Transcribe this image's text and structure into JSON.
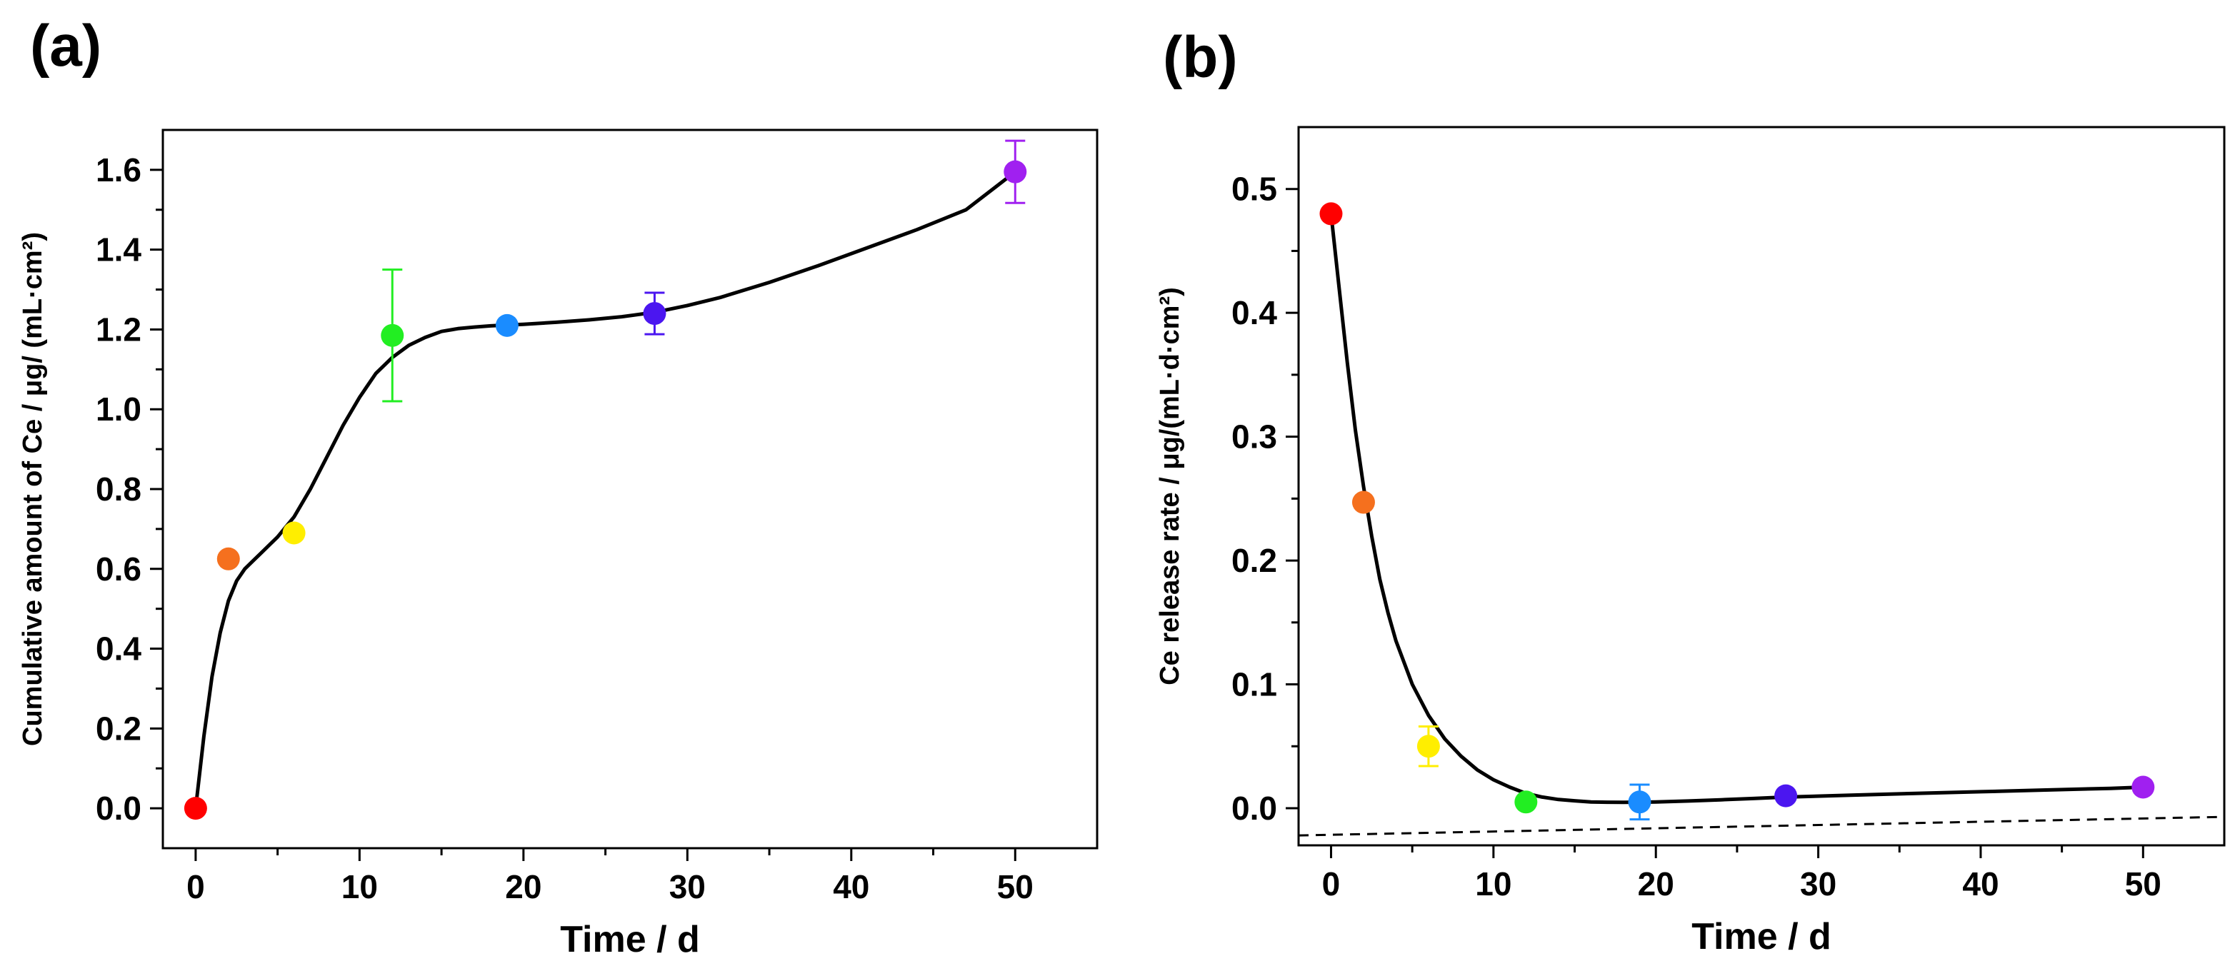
{
  "chart_data": [
    {
      "type": "scatter",
      "panel_label": "(a)",
      "xlabel": "Time / d",
      "ylabel": "Cumulative amount of Ce / μg/ (mL·cm²)",
      "xlim": [
        -2,
        55
      ],
      "ylim": [
        -0.1,
        1.7
      ],
      "xticks": [
        0,
        10,
        20,
        30,
        40,
        50
      ],
      "xtick_labels": [
        "0",
        "10",
        "20",
        "30",
        "40",
        "50"
      ],
      "yticks": [
        0.0,
        0.2,
        0.4,
        0.6,
        0.8,
        1.0,
        1.2,
        1.4,
        1.6
      ],
      "ytick_labels": [
        "0.0",
        "0.2",
        "0.4",
        "0.6",
        "0.8",
        "1.0",
        "1.2",
        "1.4",
        "1.6"
      ],
      "points": [
        {
          "x": 0,
          "y": 0.0,
          "err": 0,
          "color": "#ff0000"
        },
        {
          "x": 2,
          "y": 0.625,
          "err": 0,
          "color": "#f5701e"
        },
        {
          "x": 6,
          "y": 0.69,
          "err": 0,
          "color": "#ffee00"
        },
        {
          "x": 12,
          "y": 1.185,
          "err": 0.165,
          "color": "#22ee22"
        },
        {
          "x": 19,
          "y": 1.21,
          "err": 0,
          "color": "#1a8cff"
        },
        {
          "x": 28,
          "y": 1.24,
          "err": 0.052,
          "color": "#4b16f0"
        },
        {
          "x": 50,
          "y": 1.595,
          "err": 0.078,
          "color": "#a020f0"
        }
      ],
      "fit_curve": {
        "x": [
          0,
          0.5,
          1,
          1.5,
          2,
          2.5,
          3,
          3.5,
          4,
          5,
          6,
          7,
          8,
          9,
          10,
          11,
          12,
          13,
          14,
          15,
          16,
          17,
          18,
          19,
          20,
          22,
          24,
          26,
          28,
          30,
          32,
          35,
          38,
          41,
          44,
          47,
          50
        ],
        "y": [
          0.0,
          0.18,
          0.33,
          0.44,
          0.52,
          0.57,
          0.6,
          0.62,
          0.64,
          0.68,
          0.73,
          0.8,
          0.88,
          0.96,
          1.03,
          1.09,
          1.13,
          1.16,
          1.18,
          1.195,
          1.202,
          1.206,
          1.209,
          1.211,
          1.213,
          1.218,
          1.224,
          1.232,
          1.243,
          1.26,
          1.28,
          1.318,
          1.36,
          1.405,
          1.45,
          1.5,
          1.595
        ]
      }
    },
    {
      "type": "scatter",
      "panel_label": "(b)",
      "xlabel": "Time / d",
      "ylabel": "Ce release rate / μg/(mL·d·cm²)",
      "xlim": [
        -2,
        55
      ],
      "ylim": [
        -0.03,
        0.55
      ],
      "xticks": [
        0,
        10,
        20,
        30,
        40,
        50
      ],
      "xtick_labels": [
        "0",
        "10",
        "20",
        "30",
        "40",
        "50"
      ],
      "yticks": [
        0.0,
        0.1,
        0.2,
        0.3,
        0.4,
        0.5
      ],
      "ytick_labels": [
        "0.0",
        "0.1",
        "0.2",
        "0.3",
        "0.4",
        "0.5"
      ],
      "points": [
        {
          "x": 0,
          "y": 0.48,
          "err": 0,
          "color": "#ff0000"
        },
        {
          "x": 2,
          "y": 0.247,
          "err": 0,
          "color": "#f5701e"
        },
        {
          "x": 6,
          "y": 0.05,
          "err": 0.016,
          "color": "#ffee00"
        },
        {
          "x": 12,
          "y": 0.005,
          "err": 0,
          "color": "#22ee22"
        },
        {
          "x": 19,
          "y": 0.005,
          "err": 0.014,
          "color": "#1a8cff"
        },
        {
          "x": 28,
          "y": 0.01,
          "err": 0,
          "color": "#4b16f0"
        },
        {
          "x": 50,
          "y": 0.017,
          "err": 0,
          "color": "#a020f0"
        }
      ],
      "fit_curve": {
        "x": [
          0,
          0.5,
          1,
          1.5,
          2,
          2.5,
          3,
          3.5,
          4,
          5,
          6,
          7,
          8,
          9,
          10,
          11,
          12,
          13,
          14,
          15,
          16,
          17,
          18,
          19,
          20,
          22,
          24,
          26,
          28,
          32,
          36,
          40,
          44,
          48,
          50
        ],
        "y": [
          0.48,
          0.42,
          0.36,
          0.305,
          0.26,
          0.22,
          0.185,
          0.158,
          0.135,
          0.1,
          0.075,
          0.056,
          0.042,
          0.031,
          0.023,
          0.017,
          0.012,
          0.009,
          0.007,
          0.006,
          0.005,
          0.0048,
          0.0047,
          0.0048,
          0.005,
          0.0058,
          0.0068,
          0.0078,
          0.009,
          0.0105,
          0.012,
          0.0133,
          0.0147,
          0.016,
          0.017
        ]
      },
      "baseline": {
        "x": [
          -2,
          55
        ],
        "y": [
          -0.022,
          -0.007
        ]
      }
    }
  ]
}
